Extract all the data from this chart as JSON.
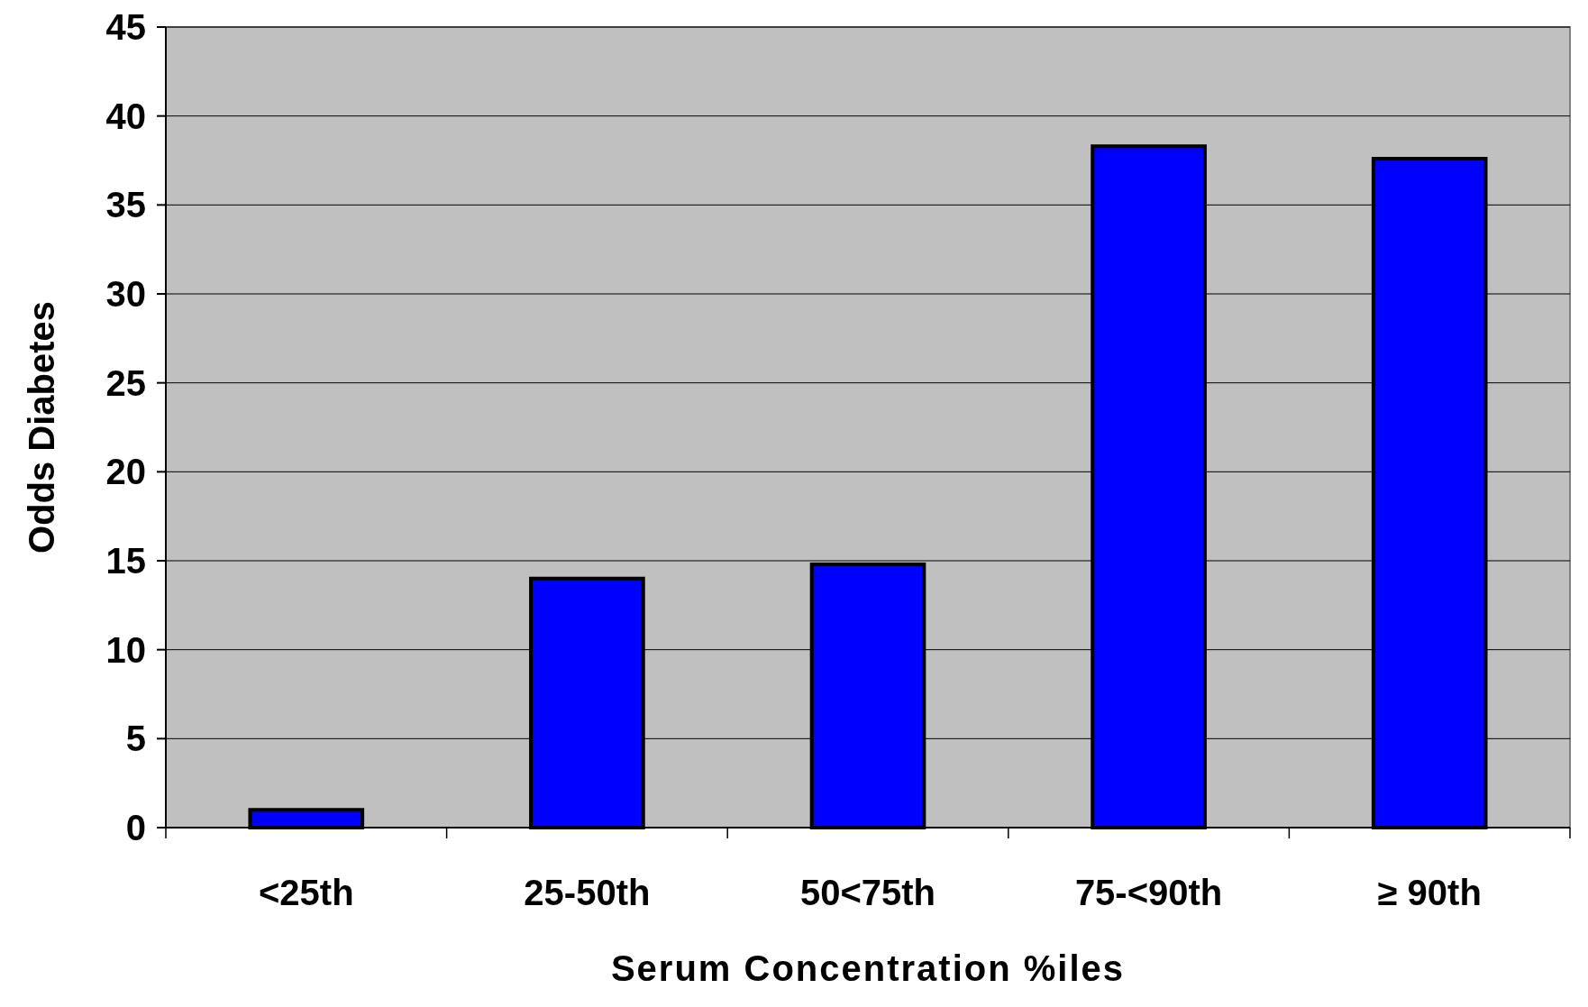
{
  "chart_data": {
    "type": "bar",
    "xlabel": "Serum Concentration %iles",
    "ylabel": "Odds Diabetes",
    "categories": [
      "<25th",
      "25-50th",
      "50<75th",
      "75-<90th",
      "≥ 90th"
    ],
    "values": [
      1,
      14,
      14.8,
      38.3,
      37.6
    ],
    "color": "#0000ff",
    "ylim": [
      0,
      45
    ],
    "yticks": [
      0,
      5,
      10,
      15,
      20,
      25,
      30,
      35,
      40,
      45
    ],
    "grid": "y"
  }
}
